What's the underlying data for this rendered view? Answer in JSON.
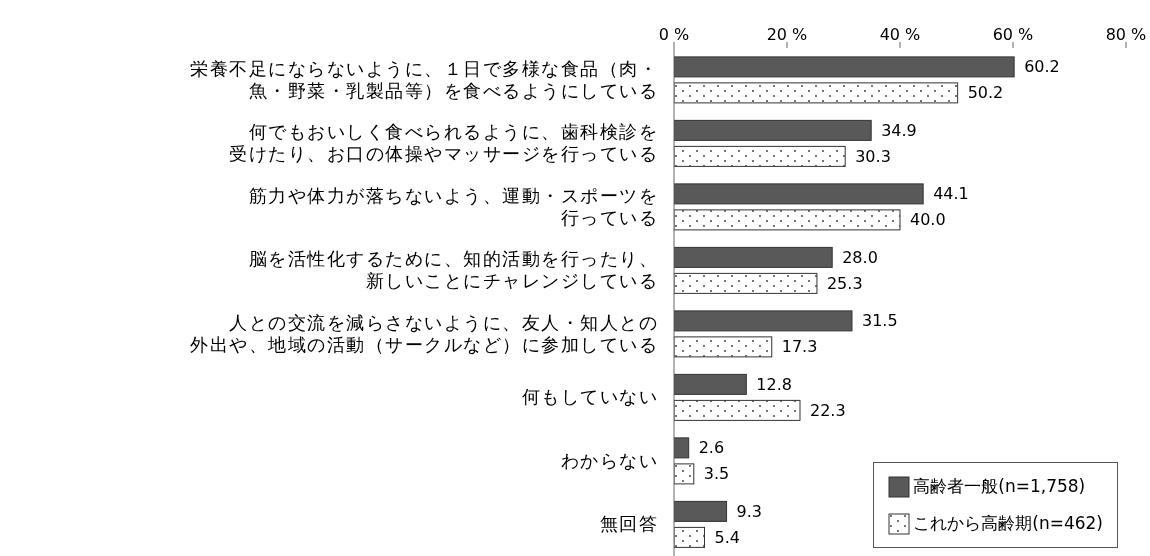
{
  "chart_data": {
    "type": "bar",
    "orientation": "horizontal",
    "categories": [
      "栄養不足にならないように、１日で多様な食品（肉・魚・野菜・乳製品等）を食べるようにしている",
      "何でもおいしく食べられるように、歯科検診を受けたり、お口の体操やマッサージを行っている",
      "筋力や体力が落ちないよう、運動・スポーツを行っている",
      "脳を活性化するために、知的活動を行ったり、新しいことにチャレンジしている",
      "人との交流を減らさないように、友人・知人との外出や、地域の活動（サークルなど）に参加している",
      "何もしていない",
      "わからない",
      "無回答"
    ],
    "series": [
      {
        "name": "高齢者一般(n=1,758)",
        "color": "#595959",
        "values": [
          60.2,
          34.9,
          44.1,
          28.0,
          31.5,
          12.8,
          2.6,
          9.3
        ],
        "value_labels": [
          "60.2",
          "34.9",
          "44.1",
          "28.0",
          "31.5",
          "12.8",
          "2.6",
          "9.3"
        ]
      },
      {
        "name": "これから高齢期(n=462)",
        "color": "#ffffff",
        "values": [
          50.2,
          30.3,
          40.0,
          25.3,
          17.3,
          22.3,
          3.5,
          5.4
        ],
        "value_labels": [
          "50.2",
          "30.3",
          "40.0",
          "25.3",
          "17.3",
          "22.3",
          "3.5",
          "5.4"
        ]
      }
    ],
    "xlim": [
      0,
      80
    ],
    "xticks": [
      {
        "value": 0,
        "label": "0 %"
      },
      {
        "value": 20,
        "label": "20 %"
      },
      {
        "value": 40,
        "label": "40 %"
      },
      {
        "value": 60,
        "label": "60 %"
      },
      {
        "value": 80,
        "label": "80 %"
      }
    ],
    "legend": "bottom right"
  }
}
